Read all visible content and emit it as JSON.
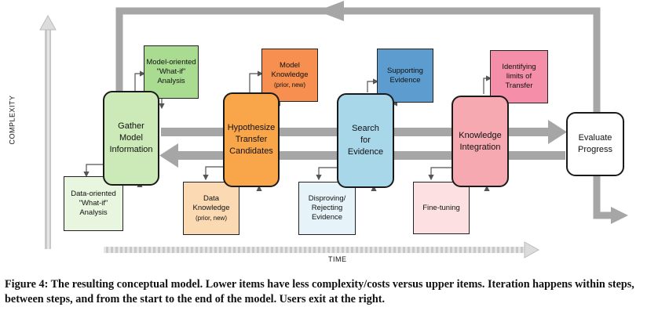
{
  "axes": {
    "y_label": "COMPLEXITY",
    "x_label": "TIME"
  },
  "main_boxes": [
    {
      "id": "gather",
      "label": "Gather\nModel\nInformation",
      "color": "#cbeab8"
    },
    {
      "id": "hypothesize",
      "label": "Hypothesize\nTransfer\nCandidates",
      "color": "#f9a64a"
    },
    {
      "id": "search",
      "label": "Search\nfor\nEvidence",
      "color": "#a9d7ea"
    },
    {
      "id": "knowledge",
      "label": "Knowledge\nIntegration",
      "color": "#f6a9b0"
    },
    {
      "id": "evaluate",
      "label": "Evaluate\nProgress",
      "color": "#ffffff"
    }
  ],
  "upper_boxes": [
    {
      "id": "model-whatif",
      "label": "Model-oriented\n\"What-if\"\nAnalysis",
      "color": "#a9dc90"
    },
    {
      "id": "model-knowledge",
      "label": "Model\nKnowledge",
      "small": "(prior, new)",
      "color": "#f68f4f"
    },
    {
      "id": "supporting",
      "label": "Supporting\nEvidence",
      "color": "#5d9ccf"
    },
    {
      "id": "limits",
      "label": "Identifying\nlimits of\nTransfer",
      "color": "#f58ea8"
    }
  ],
  "lower_boxes": [
    {
      "id": "data-whatif",
      "label": "Data-oriented\n\"What-if\"\nAnalysis",
      "color": "#e8f5df"
    },
    {
      "id": "data-knowledge",
      "label": "Data\nKnowledge",
      "small": "(prior, new)",
      "color": "#fbd9b2"
    },
    {
      "id": "disproving",
      "label": "Disproving/\nRejecting\nEvidence",
      "color": "#e6f3f8"
    },
    {
      "id": "finetuning",
      "label": "Fine-tuning",
      "color": "#fde1e2"
    }
  ],
  "caption": "Figure 4: The resulting conceptual model. Lower items have less complexity/costs versus upper items. Iteration happens within steps, between steps, and from the start to the end of the model. Users exit at the right."
}
